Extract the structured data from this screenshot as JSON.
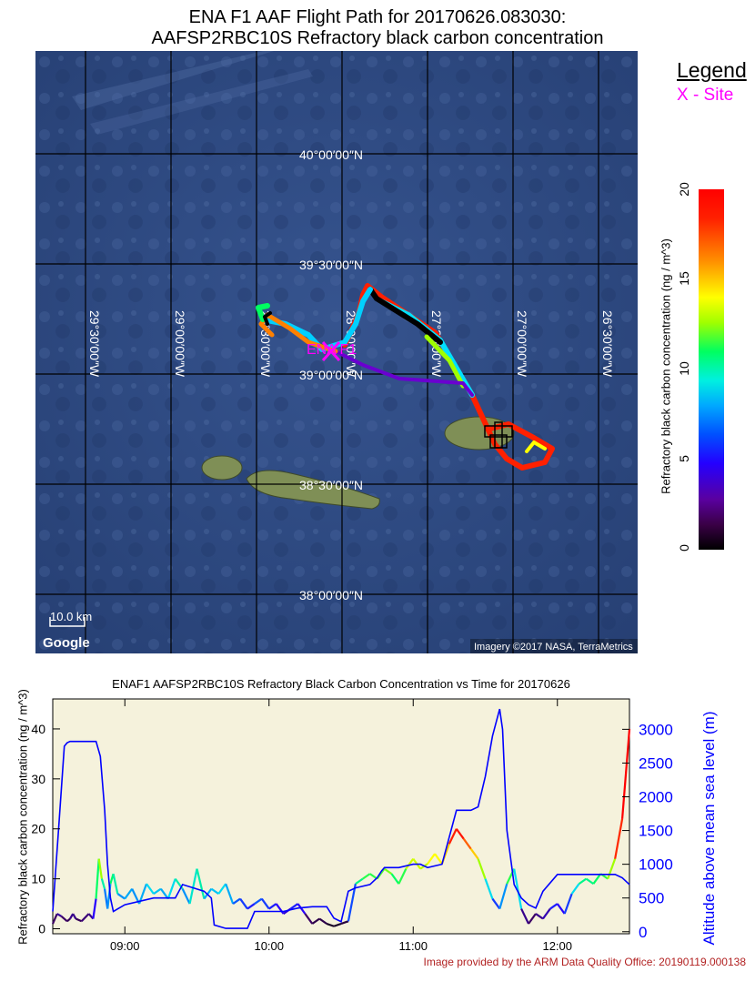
{
  "map": {
    "title_line1": "ENA F1 AAF Flight Path for 20170626.083030:",
    "title_line2": "AAFSP2RBC10S Refractory black carbon concentration",
    "lat_labels": [
      "40°00′00″N",
      "39°30′00″N",
      "39°00′00″N",
      "38°30′00″N",
      "38°00′00″N"
    ],
    "lon_labels": [
      "29°30′00″W",
      "29°00′00″W",
      "28°30′00″W",
      "28°00′00″W",
      "27°30′00″W",
      "27°00′00″W",
      "26°30′00″W"
    ],
    "site_label": "ENA F1",
    "scale_label": "10.0 km",
    "google_logo": "Google",
    "imagery_credit": "Imagery ©2017 NASA, TerraMetrics",
    "colors": {
      "ocean": "#2f4a82",
      "island": "#7f8f56",
      "grid": "#000000",
      "site": "#ff00ff"
    }
  },
  "legend": {
    "title": "Legend",
    "site_item": "X - Site"
  },
  "colorbar": {
    "label": "Refractory black carbon concentration  (ng / m^3)",
    "ticks": [
      "0",
      "5",
      "10",
      "15",
      "20"
    ],
    "range": [
      0,
      20
    ]
  },
  "chart_data": {
    "type": "line",
    "title": "ENAF1 AAFSP2RBC10S Refractory Black Carbon Concentration vs Time for 20170626",
    "ylabel": "Refractory black carbon concentration (ng / m^3)",
    "y2label": "Altitude above mean sea level (m)",
    "x_ticks": [
      "09:00",
      "10:00",
      "11:00",
      "12:00"
    ],
    "y_ticks": [
      "0",
      "10",
      "20",
      "30",
      "40"
    ],
    "y2_ticks": [
      "0",
      "500",
      "1000",
      "1500",
      "2000",
      "2500",
      "3000"
    ],
    "xlim_hours": [
      8.5,
      12.5
    ],
    "ylim": [
      -1,
      46
    ],
    "y2lim": [
      -30,
      3450
    ],
    "background": "#f5f2dc",
    "series": [
      {
        "x_hours": [
          8.5,
          8.53,
          8.56,
          8.6,
          8.62,
          8.64,
          8.66,
          8.7,
          8.75,
          8.78,
          8.8,
          8.82,
          8.84,
          8.86,
          8.88,
          8.9,
          8.92,
          8.95,
          9.0,
          9.05,
          9.1,
          9.15,
          9.2,
          9.25,
          9.3,
          9.35,
          9.4,
          9.45,
          9.5,
          9.55,
          9.6,
          9.65,
          9.7,
          9.75,
          9.8,
          9.85,
          9.9,
          9.95,
          10.0,
          10.05,
          10.1,
          10.15,
          10.2,
          10.25,
          10.3,
          10.35,
          10.4,
          10.45,
          10.5,
          10.55,
          10.6,
          10.65,
          10.7,
          10.75,
          10.8,
          10.85,
          10.9,
          10.95,
          11.0,
          11.05,
          11.1,
          11.15,
          11.2,
          11.25,
          11.3,
          11.35,
          11.4,
          11.45,
          11.5,
          11.55,
          11.6,
          11.65,
          11.7,
          11.75,
          11.8,
          11.85,
          11.9,
          11.95,
          12.0,
          12.05,
          12.1,
          12.15,
          12.2,
          12.25,
          12.3,
          12.35,
          12.4,
          12.45,
          12.5
        ],
        "values": [
          1.0,
          3.0,
          2.5,
          1.5,
          2.0,
          3.0,
          2.0,
          1.5,
          3.0,
          2.0,
          6.0,
          14.0,
          10.0,
          8.0,
          4.0,
          9.0,
          11.0,
          7.0,
          6.0,
          8.0,
          5.0,
          9.0,
          7.0,
          8.0,
          6.0,
          10.0,
          8.0,
          5.0,
          12.0,
          6.0,
          8.0,
          7.0,
          9.0,
          5.0,
          6.0,
          4.0,
          5.0,
          6.0,
          4.0,
          5.0,
          3.0,
          4.0,
          5.0,
          3.0,
          1.0,
          2.0,
          1.0,
          0.5,
          1.0,
          1.5,
          9.0,
          10.0,
          11.0,
          10.0,
          12.0,
          11.0,
          9.0,
          12.0,
          14.0,
          12.0,
          13.0,
          15.0,
          13.0,
          17.0,
          20.0,
          18.0,
          16.0,
          14.0,
          10.0,
          6.0,
          4.0,
          9.0,
          12.0,
          4.0,
          1.0,
          3.0,
          2.0,
          4.0,
          5.0,
          3.0,
          7.0,
          9.0,
          10.0,
          9.0,
          11.0,
          10.0,
          14.0,
          22.0,
          40.0
        ]
      },
      {
        "name": "Altitude",
        "x_hours": [
          8.5,
          8.54,
          8.58,
          8.6,
          8.62,
          8.7,
          8.8,
          8.83,
          8.86,
          8.88,
          8.9,
          8.92,
          9.0,
          9.2,
          9.25,
          9.35,
          9.4,
          9.55,
          9.6,
          9.62,
          9.7,
          9.8,
          9.85,
          9.9,
          10.0,
          10.1,
          10.2,
          10.3,
          10.4,
          10.45,
          10.5,
          10.55,
          10.6,
          10.7,
          10.75,
          10.78,
          10.8,
          10.9,
          11.0,
          11.05,
          11.1,
          11.2,
          11.3,
          11.4,
          11.45,
          11.5,
          11.55,
          11.6,
          11.62,
          11.65,
          11.7,
          11.75,
          11.8,
          11.85,
          11.9,
          12.0,
          12.1,
          12.2,
          12.3,
          12.4,
          12.45,
          12.5
        ],
        "values": [
          300,
          1500,
          2750,
          2800,
          2820,
          2820,
          2820,
          2600,
          1800,
          1000,
          500,
          300,
          400,
          500,
          500,
          500,
          700,
          600,
          500,
          100,
          50,
          50,
          50,
          300,
          300,
          300,
          350,
          370,
          370,
          200,
          150,
          600,
          650,
          700,
          800,
          900,
          950,
          950,
          1000,
          1000,
          950,
          1000,
          1800,
          1800,
          1850,
          2300,
          2900,
          3300,
          3000,
          1500,
          700,
          500,
          400,
          350,
          600,
          850,
          850,
          850,
          850,
          850,
          800,
          700
        ]
      }
    ]
  },
  "credit": "Image provided by the ARM Data Quality Office: 20190119.000138"
}
